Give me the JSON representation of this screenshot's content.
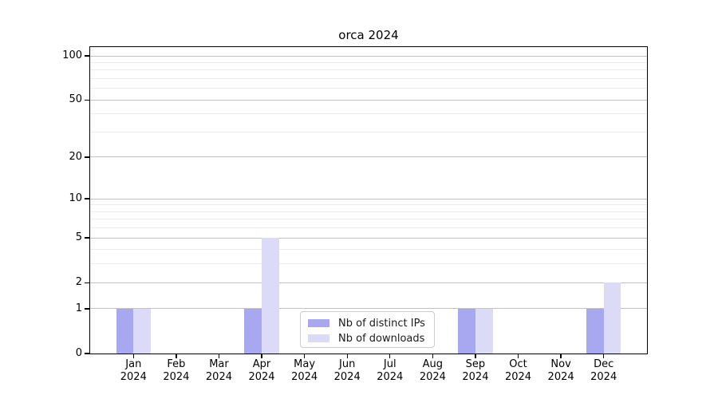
{
  "title": "orca 2024",
  "chart_data": {
    "type": "bar",
    "title": "orca 2024",
    "xlabel": "",
    "ylabel": "",
    "yscale": "log1p",
    "ylim": [
      0,
      100
    ],
    "grid": true,
    "legend_position": "lower center",
    "categories": [
      "Jan 2024",
      "Feb 2024",
      "Mar 2024",
      "Apr 2024",
      "May 2024",
      "Jun 2024",
      "Jul 2024",
      "Aug 2024",
      "Sep 2024",
      "Oct 2024",
      "Nov 2024",
      "Dec 2024"
    ],
    "y_major_ticks": [
      0,
      1,
      2,
      5,
      10,
      20,
      50,
      100
    ],
    "y_minor_gridlines": [
      3,
      4,
      6,
      7,
      8,
      9,
      30,
      40,
      60,
      70,
      80,
      90
    ],
    "series": [
      {
        "name": "Nb of distinct IPs",
        "color": "#a8a8f0",
        "values": [
          1,
          0,
          0,
          1,
          0,
          0,
          0,
          0,
          1,
          0,
          0,
          1
        ]
      },
      {
        "name": "Nb of downloads",
        "color": "#dbdbf8",
        "values": [
          1,
          0,
          0,
          5,
          0,
          0,
          0,
          0,
          1,
          0,
          0,
          2
        ]
      }
    ]
  }
}
